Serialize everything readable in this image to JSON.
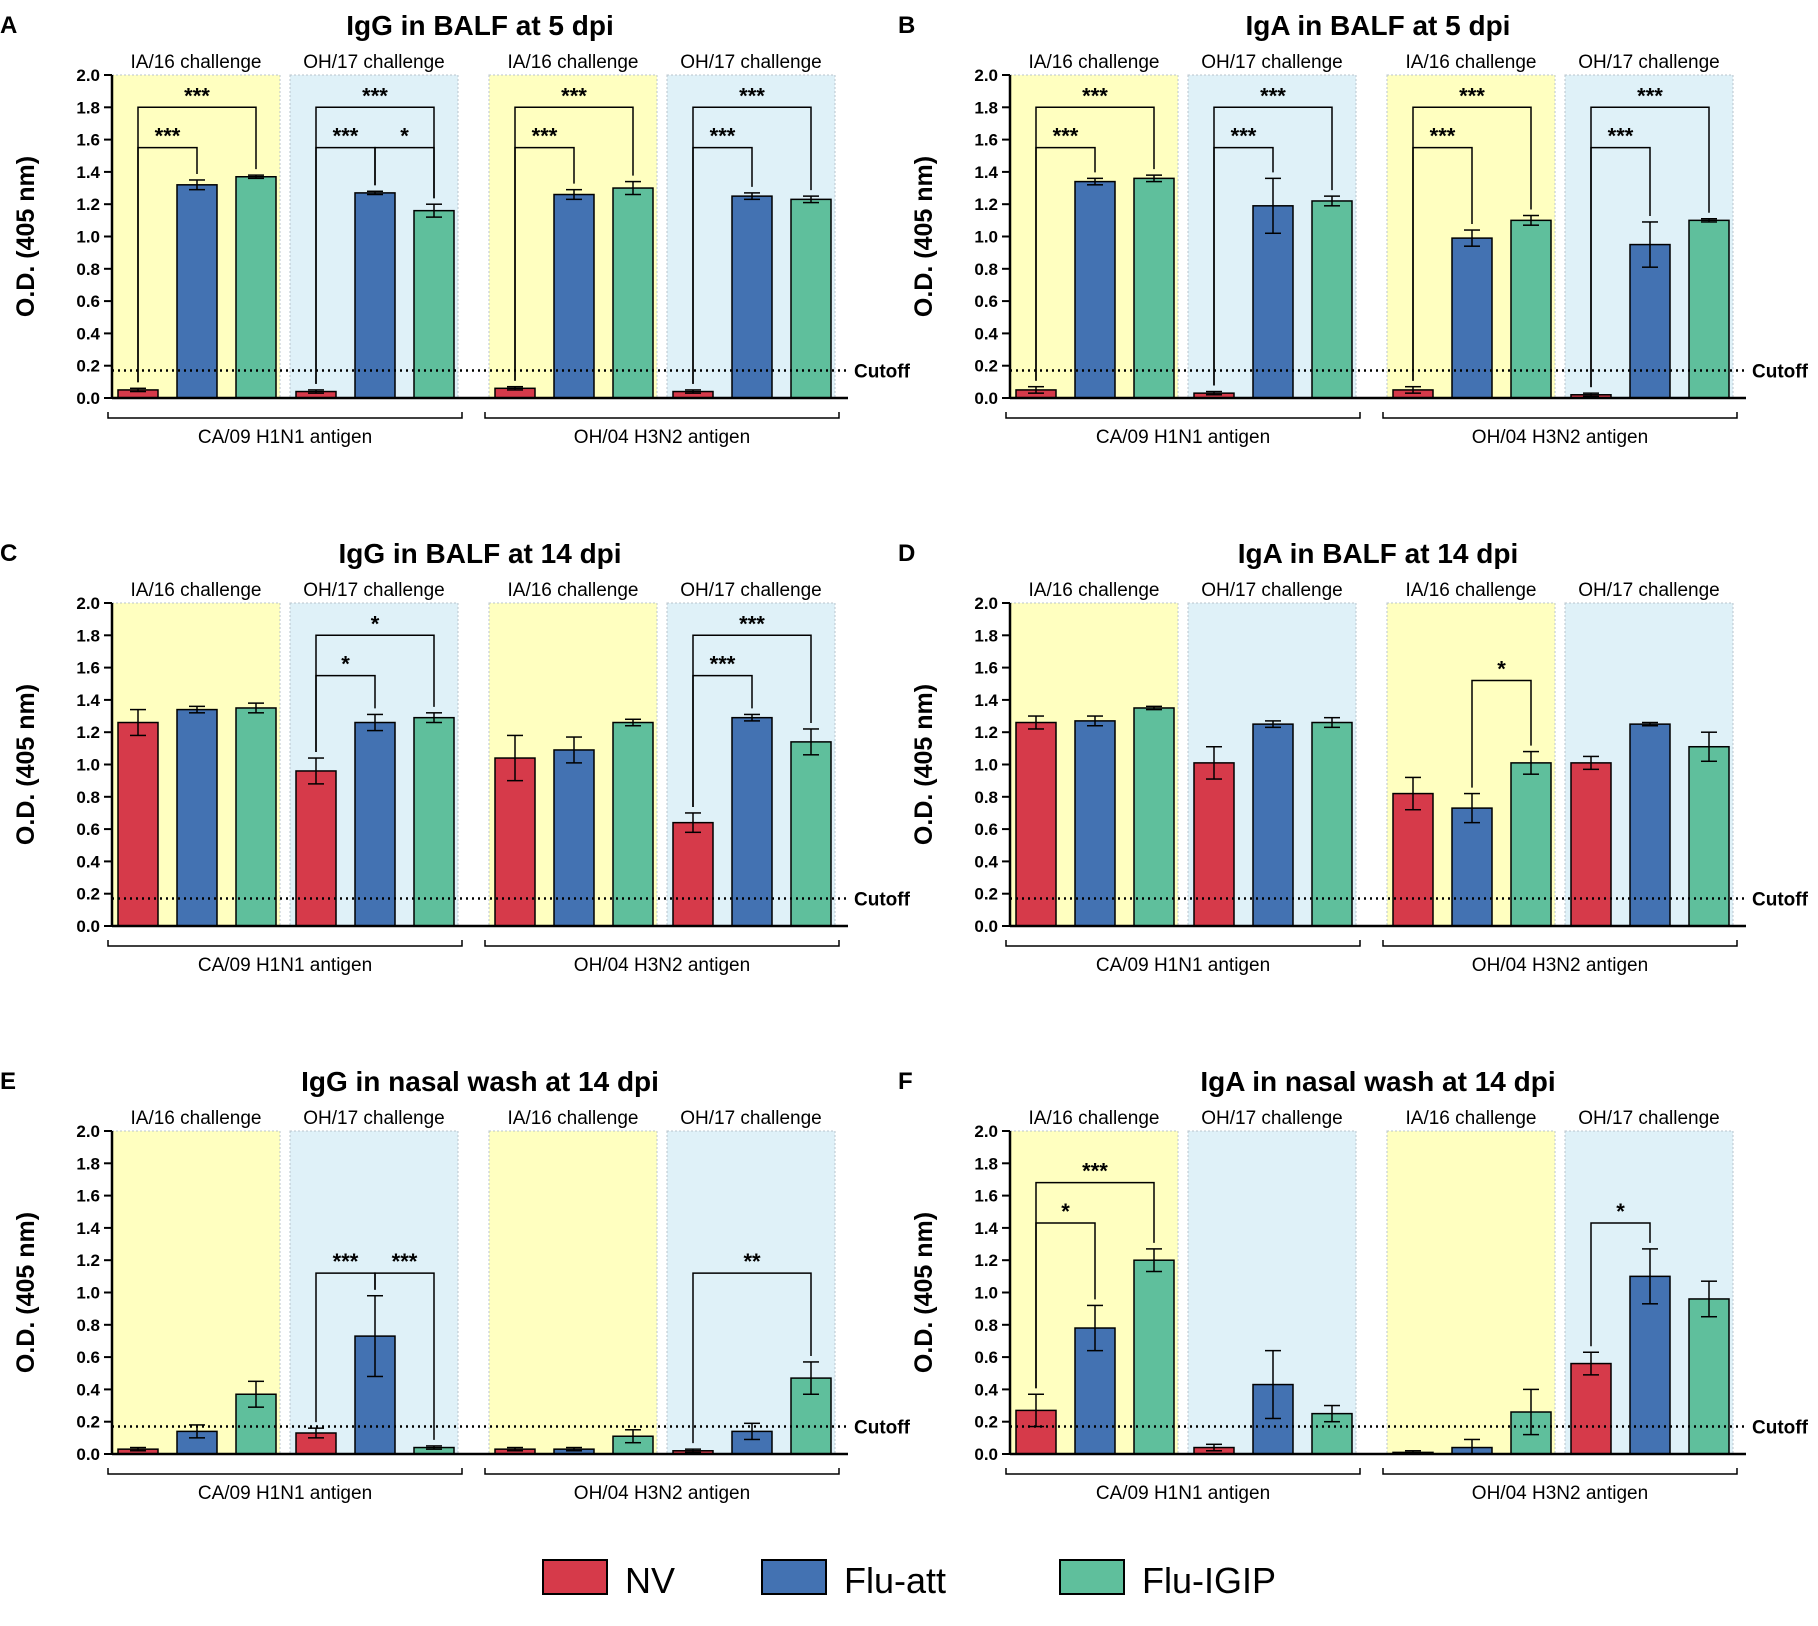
{
  "figure": {
    "legend": [
      {
        "label": "NV",
        "color": "#d63a4a"
      },
      {
        "label": "Flu-att",
        "color": "#4372b2"
      },
      {
        "label": "Flu-IGIP",
        "color": "#5fbf9c"
      }
    ],
    "colors": {
      "ia16_background": "#ffffc0",
      "oh17_background": "#dff1f8",
      "nv": "#d63a4a",
      "flu_att": "#4372b2",
      "flu_igip": "#5fbf9c"
    },
    "cutoff_label": "Cutoff",
    "ytick_labels": [
      "0.0",
      "0.2",
      "0.4",
      "0.6",
      "0.8",
      "1.0",
      "1.2",
      "1.4",
      "1.6",
      "1.8",
      "2.0"
    ]
  },
  "chart_data": [
    {
      "type": "bar",
      "panel": "A",
      "title": "IgG in BALF at 5 dpi",
      "ylabel": "O.D. (405 nm)",
      "ylim": [
        0,
        2.0
      ],
      "cutoff": 0.17,
      "antigen_groups": [
        "CA/09 H1N1 antigen",
        "OH/04 H3N2 antigen"
      ],
      "challenge_groups": [
        "IA/16 challenge",
        "OH/17 challenge",
        "IA/16 challenge",
        "OH/17 challenge"
      ],
      "series_names": [
        "NV",
        "Flu-att",
        "Flu-IGIP"
      ],
      "values": [
        [
          0.05,
          1.32,
          1.37
        ],
        [
          0.04,
          1.27,
          1.16
        ],
        [
          0.06,
          1.26,
          1.3
        ],
        [
          0.04,
          1.25,
          1.23
        ]
      ],
      "errors": [
        [
          0.01,
          0.03,
          0.01
        ],
        [
          0.01,
          0.01,
          0.04
        ],
        [
          0.01,
          0.03,
          0.04
        ],
        [
          0.01,
          0.02,
          0.02
        ]
      ],
      "significance": [
        {
          "group": 0,
          "from": 0,
          "to": 1,
          "label": "***",
          "level": 1.55
        },
        {
          "group": 0,
          "from": 0,
          "to": 2,
          "label": "***",
          "level": 1.8
        },
        {
          "group": 1,
          "from": 0,
          "to": 1,
          "label": "***",
          "level": 1.55
        },
        {
          "group": 1,
          "from": 1,
          "to": 2,
          "label": "*",
          "level": 1.55
        },
        {
          "group": 1,
          "from": 0,
          "to": 2,
          "label": "***",
          "level": 1.8
        },
        {
          "group": 2,
          "from": 0,
          "to": 1,
          "label": "***",
          "level": 1.55
        },
        {
          "group": 2,
          "from": 0,
          "to": 2,
          "label": "***",
          "level": 1.8
        },
        {
          "group": 3,
          "from": 0,
          "to": 1,
          "label": "***",
          "level": 1.55
        },
        {
          "group": 3,
          "from": 0,
          "to": 2,
          "label": "***",
          "level": 1.8
        }
      ]
    },
    {
      "type": "bar",
      "panel": "B",
      "title": "IgA in BALF at 5 dpi",
      "ylabel": "O.D. (405 nm)",
      "ylim": [
        0,
        2.0
      ],
      "cutoff": 0.17,
      "antigen_groups": [
        "CA/09 H1N1 antigen",
        "OH/04 H3N2 antigen"
      ],
      "challenge_groups": [
        "IA/16 challenge",
        "OH/17 challenge",
        "IA/16 challenge",
        "OH/17 challenge"
      ],
      "series_names": [
        "NV",
        "Flu-att",
        "Flu-IGIP"
      ],
      "values": [
        [
          0.05,
          1.34,
          1.36
        ],
        [
          0.03,
          1.19,
          1.22
        ],
        [
          0.05,
          0.99,
          1.1
        ],
        [
          0.02,
          0.95,
          1.1
        ]
      ],
      "errors": [
        [
          0.02,
          0.02,
          0.02
        ],
        [
          0.01,
          0.17,
          0.03
        ],
        [
          0.02,
          0.05,
          0.03
        ],
        [
          0.01,
          0.14,
          0.01
        ]
      ],
      "significance": [
        {
          "group": 0,
          "from": 0,
          "to": 1,
          "label": "***",
          "level": 1.55
        },
        {
          "group": 0,
          "from": 0,
          "to": 2,
          "label": "***",
          "level": 1.8
        },
        {
          "group": 1,
          "from": 0,
          "to": 1,
          "label": "***",
          "level": 1.55
        },
        {
          "group": 1,
          "from": 0,
          "to": 2,
          "label": "***",
          "level": 1.8
        },
        {
          "group": 2,
          "from": 0,
          "to": 1,
          "label": "***",
          "level": 1.55
        },
        {
          "group": 2,
          "from": 0,
          "to": 2,
          "label": "***",
          "level": 1.8
        },
        {
          "group": 3,
          "from": 0,
          "to": 1,
          "label": "***",
          "level": 1.55
        },
        {
          "group": 3,
          "from": 0,
          "to": 2,
          "label": "***",
          "level": 1.8
        }
      ]
    },
    {
      "type": "bar",
      "panel": "C",
      "title": "IgG in BALF at 14 dpi",
      "ylabel": "O.D. (405 nm)",
      "ylim": [
        0,
        2.0
      ],
      "cutoff": 0.17,
      "antigen_groups": [
        "CA/09 H1N1 antigen",
        "OH/04 H3N2 antigen"
      ],
      "challenge_groups": [
        "IA/16 challenge",
        "OH/17 challenge",
        "IA/16 challenge",
        "OH/17 challenge"
      ],
      "series_names": [
        "NV",
        "Flu-att",
        "Flu-IGIP"
      ],
      "values": [
        [
          1.26,
          1.34,
          1.35
        ],
        [
          0.96,
          1.26,
          1.29
        ],
        [
          1.04,
          1.09,
          1.26
        ],
        [
          0.64,
          1.29,
          1.14
        ]
      ],
      "errors": [
        [
          0.08,
          0.02,
          0.03
        ],
        [
          0.08,
          0.05,
          0.03
        ],
        [
          0.14,
          0.08,
          0.02
        ],
        [
          0.06,
          0.02,
          0.08
        ]
      ],
      "significance": [
        {
          "group": 1,
          "from": 0,
          "to": 1,
          "label": "*",
          "level": 1.55
        },
        {
          "group": 1,
          "from": 0,
          "to": 2,
          "label": "*",
          "level": 1.8
        },
        {
          "group": 3,
          "from": 0,
          "to": 1,
          "label": "***",
          "level": 1.55
        },
        {
          "group": 3,
          "from": 0,
          "to": 2,
          "label": "***",
          "level": 1.8
        }
      ]
    },
    {
      "type": "bar",
      "panel": "D",
      "title": "IgA in BALF at 14 dpi",
      "ylabel": "O.D. (405 nm)",
      "ylim": [
        0,
        2.0
      ],
      "cutoff": 0.17,
      "antigen_groups": [
        "CA/09 H1N1 antigen",
        "OH/04 H3N2 antigen"
      ],
      "challenge_groups": [
        "IA/16 challenge",
        "OH/17 challenge",
        "IA/16 challenge",
        "OH/17 challenge"
      ],
      "series_names": [
        "NV",
        "Flu-att",
        "Flu-IGIP"
      ],
      "values": [
        [
          1.26,
          1.27,
          1.35
        ],
        [
          1.01,
          1.25,
          1.26
        ],
        [
          0.82,
          0.73,
          1.01
        ],
        [
          1.01,
          1.25,
          1.11
        ]
      ],
      "errors": [
        [
          0.04,
          0.03,
          0.01
        ],
        [
          0.1,
          0.02,
          0.03
        ],
        [
          0.1,
          0.09,
          0.07
        ],
        [
          0.04,
          0.01,
          0.09
        ]
      ],
      "significance": [
        {
          "group": 2,
          "from": 1,
          "to": 2,
          "label": "*",
          "level": 1.52
        }
      ]
    },
    {
      "type": "bar",
      "panel": "E",
      "title": "IgG in nasal wash at 14 dpi",
      "ylabel": "O.D. (405 nm)",
      "ylim": [
        0,
        2.0
      ],
      "cutoff": 0.17,
      "antigen_groups": [
        "CA/09 H1N1 antigen",
        "OH/04 H3N2 antigen"
      ],
      "challenge_groups": [
        "IA/16 challenge",
        "OH/17 challenge",
        "IA/16 challenge",
        "OH/17 challenge"
      ],
      "series_names": [
        "NV",
        "Flu-att",
        "Flu-IGIP"
      ],
      "values": [
        [
          0.03,
          0.14,
          0.37
        ],
        [
          0.13,
          0.73,
          0.04
        ],
        [
          0.03,
          0.03,
          0.11
        ],
        [
          0.02,
          0.14,
          0.47
        ]
      ],
      "errors": [
        [
          0.01,
          0.04,
          0.08
        ],
        [
          0.03,
          0.25,
          0.01
        ],
        [
          0.01,
          0.01,
          0.04
        ],
        [
          0.01,
          0.05,
          0.1
        ]
      ],
      "significance": [
        {
          "group": 1,
          "from": 0,
          "to": 1,
          "label": "***",
          "level": 1.12
        },
        {
          "group": 1,
          "from": 1,
          "to": 2,
          "label": "***",
          "level": 1.12
        },
        {
          "group": 3,
          "from": 0,
          "to": 2,
          "label": "**",
          "level": 1.12
        }
      ]
    },
    {
      "type": "bar",
      "panel": "F",
      "title": "IgA in nasal wash at 14 dpi",
      "ylabel": "O.D. (405 nm)",
      "ylim": [
        0,
        2.0
      ],
      "cutoff": 0.17,
      "antigen_groups": [
        "CA/09 H1N1 antigen",
        "OH/04 H3N2 antigen"
      ],
      "challenge_groups": [
        "IA/16 challenge",
        "OH/17 challenge",
        "IA/16 challenge",
        "OH/17 challenge"
      ],
      "series_names": [
        "NV",
        "Flu-att",
        "Flu-IGIP"
      ],
      "values": [
        [
          0.27,
          0.78,
          1.2
        ],
        [
          0.04,
          0.43,
          0.25
        ],
        [
          0.01,
          0.04,
          0.26
        ],
        [
          0.56,
          1.1,
          0.96
        ]
      ],
      "errors": [
        [
          0.1,
          0.14,
          0.07
        ],
        [
          0.02,
          0.21,
          0.05
        ],
        [
          0.01,
          0.05,
          0.14
        ],
        [
          0.07,
          0.17,
          0.11
        ]
      ],
      "significance": [
        {
          "group": 0,
          "from": 0,
          "to": 1,
          "label": "*",
          "level": 1.43
        },
        {
          "group": 0,
          "from": 0,
          "to": 2,
          "label": "***",
          "level": 1.68
        },
        {
          "group": 3,
          "from": 0,
          "to": 1,
          "label": "*",
          "level": 1.43
        }
      ]
    }
  ]
}
